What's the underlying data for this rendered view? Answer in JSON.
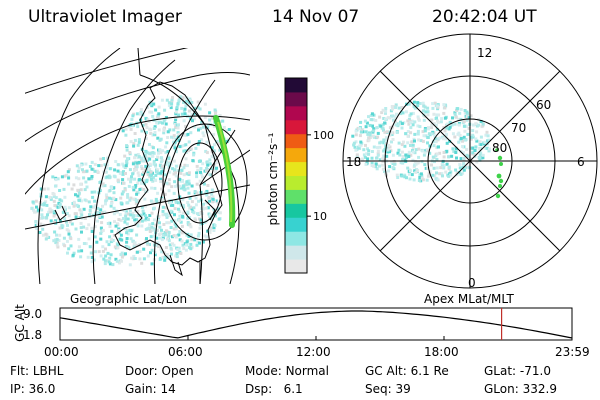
{
  "header": {
    "title": "Ultraviolet Imager",
    "date": "14 Nov 07",
    "time": "20:42:04 UT"
  },
  "colorbar": {
    "label": "photon cm⁻²s⁻¹",
    "ticks": [
      {
        "value": 100,
        "label": "100"
      },
      {
        "value": 10,
        "label": "10"
      }
    ],
    "range": [
      2,
      500
    ],
    "colors": [
      "#e8e8e8",
      "#cfe7ea",
      "#8ee7e4",
      "#38d2d0",
      "#17c7a0",
      "#5fe06a",
      "#b9ec2e",
      "#e7e51c",
      "#f5a80c",
      "#ef5c14",
      "#d8173a",
      "#b0074f",
      "#6b0a4a",
      "#220a36"
    ]
  },
  "geo_map": {
    "label": "Geographic Lat/Lon"
  },
  "polar": {
    "caption": "Apex MLat/MLT",
    "mlt_labels": {
      "top": "12",
      "left": "18",
      "right": "6",
      "bottom": "0"
    },
    "lat_labels": [
      "60",
      "70",
      "80"
    ]
  },
  "altitude": {
    "ylabel": "GC Alt",
    "yticks": [
      "9.0",
      "1.8"
    ],
    "xticks": [
      "00:00",
      "06:00",
      "12:00",
      "18:00",
      "23:59"
    ],
    "marker_time_hours": 20.7,
    "marker_color": "#c0302a"
  },
  "info": {
    "flt_label": "Flt:",
    "flt_value": "LBHL",
    "ip_label": "IP:",
    "ip_value": "36.0",
    "door_label": "Door:",
    "door_value": "Open",
    "gain_label": "Gain:",
    "gain_value": "14",
    "mode_label": "Mode:",
    "mode_value": "Normal",
    "dsp_label": "Dsp:",
    "dsp_value": "6.1",
    "gcalt_label": "GC Alt:",
    "gcalt_value": "6.1 Re",
    "seq_label": "Seq:",
    "seq_value": "39",
    "glat_label": "GLat:",
    "glat_value": "-71.0",
    "glon_label": "GLon:",
    "glon_value": "332.9"
  }
}
